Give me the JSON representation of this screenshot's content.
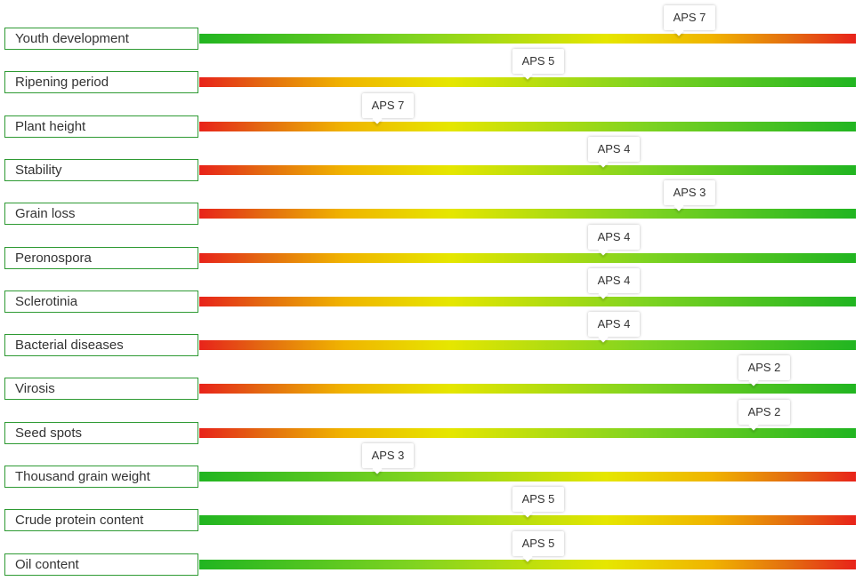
{
  "chart_data": {
    "type": "bar",
    "title": "",
    "scale_min": 1,
    "scale_max": 9,
    "unit_prefix": "APS",
    "rows": [
      {
        "label": "Youth development",
        "tip": "APS 7",
        "value": 7,
        "direction": "good-low"
      },
      {
        "label": "Ripening period",
        "tip": "APS 5",
        "value": 5,
        "direction": "good-high"
      },
      {
        "label": "Plant height",
        "tip": "APS 7",
        "value": 7,
        "direction": "good-high"
      },
      {
        "label": "Stability",
        "tip": "APS 4",
        "value": 4,
        "direction": "good-high"
      },
      {
        "label": "Grain loss",
        "tip": "APS 3",
        "value": 3,
        "direction": "good-high"
      },
      {
        "label": "Peronospora",
        "tip": "APS 4",
        "value": 4,
        "direction": "good-high"
      },
      {
        "label": "Sclerotinia",
        "tip": "APS 4",
        "value": 4,
        "direction": "good-high"
      },
      {
        "label": "Bacterial diseases",
        "tip": "APS 4",
        "value": 4,
        "direction": "good-high"
      },
      {
        "label": "Virosis",
        "tip": "APS 2",
        "value": 2,
        "direction": "good-high"
      },
      {
        "label": "Seed spots",
        "tip": "APS 2",
        "value": 2,
        "direction": "good-high"
      },
      {
        "label": "Thousand grain weight",
        "tip": "APS 3",
        "value": 3,
        "direction": "good-low"
      },
      {
        "label": "Crude protein content",
        "tip": "APS 5",
        "value": 5,
        "direction": "good-low"
      },
      {
        "label": "Oil content",
        "tip": "APS 5",
        "value": 5,
        "direction": "good-low"
      }
    ],
    "colors": {
      "green": "#21b521",
      "yellow": "#e6e600",
      "red": "#e8231a",
      "border": "#2e9a33"
    }
  }
}
